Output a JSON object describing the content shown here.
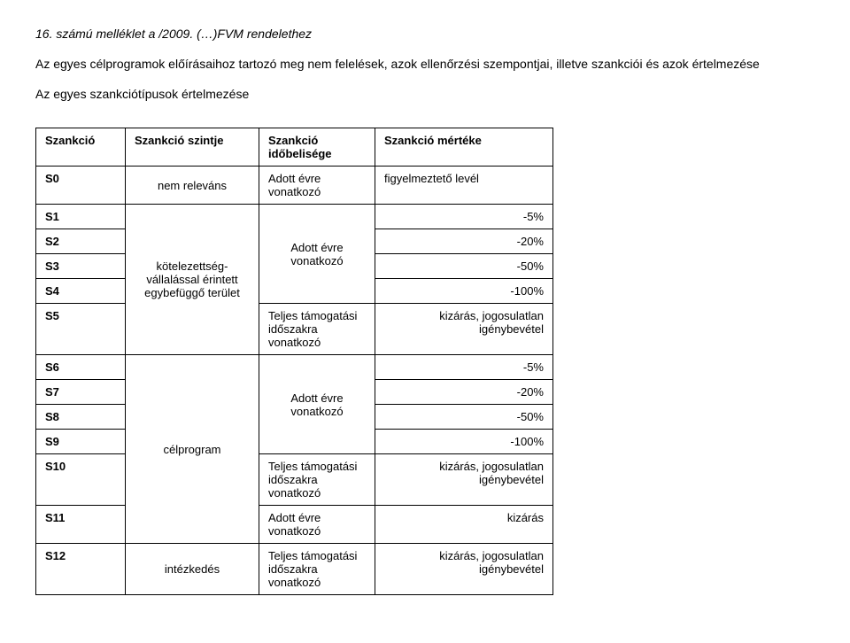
{
  "header": {
    "title": "16. számú melléklet a /2009. (…)FVM rendelethez",
    "subtitle": "Az egyes célprogramok előírásaihoz tartozó meg nem felelések, azok ellenőrzési szempontjai, illetve szankciói és azok értelmezése",
    "section_heading": "Az egyes szankciótípusok értelmezése"
  },
  "table": {
    "header": {
      "c1": "Szankció",
      "c2": "Szankció szintje",
      "c3": "Szankció időbelisége",
      "c4": "Szankció mértéke"
    },
    "rows": {
      "s0": {
        "label": "S0",
        "level": "nem releváns",
        "period": "Adott évre vonatkozó",
        "measure": "figyelmeztető levél"
      },
      "group1_level": "kötelezettség-vállalással érintett egybefüggő terület",
      "group1_period_a": "Adott évre vonatkozó",
      "group1_period_b": "Teljes támogatási időszakra vonatkozó",
      "s1": {
        "label": "S1",
        "measure": "-5%"
      },
      "s2": {
        "label": "S2",
        "measure": "-20%"
      },
      "s3": {
        "label": "S3",
        "measure": "-50%"
      },
      "s4": {
        "label": "S4",
        "measure": "-100%"
      },
      "s5": {
        "label": "S5",
        "measure": "kizárás, jogosulatlan igénybevétel"
      },
      "group2_level": "célprogram",
      "group2_period_a": "Adott évre vonatkozó",
      "group2_period_b": "Teljes támogatási időszakra vonatkozó",
      "group2_period_c": "Adott évre vonatkozó",
      "group2_period_d": "Teljes támogatási időszakra vonatkozó",
      "s6": {
        "label": "S6",
        "measure": "-5%"
      },
      "s7": {
        "label": "S7",
        "measure": "-20%"
      },
      "s8": {
        "label": "S8",
        "measure": "-50%"
      },
      "s9": {
        "label": "S9",
        "measure": "-100%"
      },
      "s10": {
        "label": "S10",
        "measure": "kizárás, jogosulatlan igénybevétel"
      },
      "s11": {
        "label": "S11",
        "measure": "kizárás"
      },
      "group3_level": "intézkedés",
      "s12": {
        "label": "S12",
        "measure": "kizárás, jogosulatlan igénybevétel"
      }
    }
  }
}
